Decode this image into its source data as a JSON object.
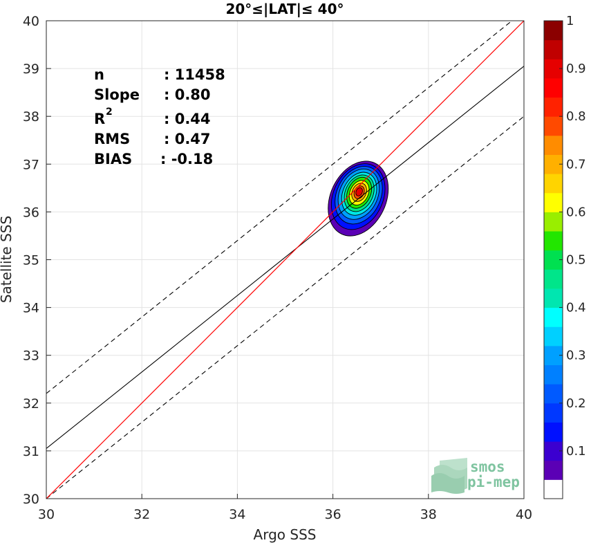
{
  "chart_data": {
    "type": "scatter",
    "title": "20°≤|LAT|≤ 40°",
    "xlabel": "Argo SSS",
    "ylabel": "Satellite SSS",
    "xlim": [
      30,
      40
    ],
    "ylim": [
      30,
      40
    ],
    "xticks": [
      "30",
      "32",
      "34",
      "36",
      "38",
      "40"
    ],
    "yticks": [
      "30",
      "31",
      "32",
      "33",
      "34",
      "35",
      "36",
      "37",
      "38",
      "39",
      "40"
    ],
    "grid": true,
    "stats": {
      "n_label": "n",
      "n_value": ": 11458",
      "slope_label": "Slope",
      "slope_value": ": 0.80",
      "r2_label": "R",
      "r2_sup": "2",
      "r2_value": ": 0.44",
      "rms_label": "RMS",
      "rms_value": ": 0.47",
      "bias_label": "BIAS",
      "bias_value": ": -0.18"
    },
    "lines": {
      "one_to_one": {
        "x": [
          30,
          40
        ],
        "y": [
          30,
          40
        ],
        "color": "#ff0000"
      },
      "regression": {
        "x": [
          30,
          40
        ],
        "y": [
          31.05,
          39.05
        ],
        "color": "#000000"
      },
      "upper_bound": {
        "x": [
          30,
          40
        ],
        "y": [
          32.2,
          40.2
        ],
        "color": "#000000",
        "style": "dashed"
      },
      "lower_bound": {
        "x": [
          30,
          40
        ],
        "y": [
          30.0,
          38.0
        ],
        "color": "#000000",
        "style": "dashed"
      }
    },
    "density": {
      "center_x": 36.55,
      "center_y": 36.4,
      "levels": [
        0.05,
        0.1,
        0.15,
        0.2,
        0.25,
        0.3,
        0.35,
        0.4,
        0.45,
        0.5,
        0.55,
        0.6,
        0.65,
        0.7,
        0.75,
        0.8,
        0.85,
        0.9,
        0.95
      ],
      "contours": [
        {
          "level": 0.05,
          "color": "#5b00b5",
          "rx": 0.58,
          "ry": 0.82,
          "dx": -0.02,
          "dy": -0.12
        },
        {
          "level": 0.2,
          "color": "#0010ff",
          "rx": 0.52,
          "ry": 0.72,
          "dx": -0.02,
          "dy": -0.08
        },
        {
          "level": 0.25,
          "color": "#005aff",
          "rx": 0.46,
          "ry": 0.63,
          "dx": -0.01,
          "dy": -0.05
        },
        {
          "level": 0.3,
          "color": "#00a0ff",
          "rx": 0.4,
          "ry": 0.55,
          "dx": -0.01,
          "dy": -0.03
        },
        {
          "level": 0.4,
          "color": "#00e6e6",
          "rx": 0.34,
          "ry": 0.47,
          "dx": 0.0,
          "dy": -0.02
        },
        {
          "level": 0.45,
          "color": "#00e58a",
          "rx": 0.29,
          "ry": 0.4,
          "dx": 0.0,
          "dy": -0.01
        },
        {
          "level": 0.5,
          "color": "#22e600",
          "rx": 0.24,
          "ry": 0.34,
          "dx": 0.0,
          "dy": 0.0
        },
        {
          "level": 0.6,
          "color": "#ffff00",
          "rx": 0.19,
          "ry": 0.27,
          "dx": 0.0,
          "dy": 0.0
        },
        {
          "level": 0.7,
          "color": "#ffb000",
          "rx": 0.145,
          "ry": 0.2,
          "dx": 0.0,
          "dy": 0.01
        },
        {
          "level": 0.8,
          "color": "#ff4a00",
          "rx": 0.1,
          "ry": 0.14,
          "dx": 0.0,
          "dy": 0.01
        },
        {
          "level": 0.9,
          "color": "#e60000",
          "rx": 0.065,
          "ry": 0.09,
          "dx": 0.0,
          "dy": 0.02
        }
      ]
    },
    "colorbar": {
      "ticks": [
        "0.1",
        "0.2",
        "0.3",
        "0.4",
        "0.5",
        "0.6",
        "0.7",
        "0.8",
        "0.9",
        "1"
      ],
      "tick_values": [
        0.1,
        0.2,
        0.3,
        0.4,
        0.5,
        0.6,
        0.7,
        0.8,
        0.9,
        1.0
      ],
      "colors": [
        "#ffffff",
        "#5b00b5",
        "#3b00d0",
        "#0010ff",
        "#0038ff",
        "#005aff",
        "#0080ff",
        "#00a0ff",
        "#00d0ff",
        "#00ffff",
        "#00e6b0",
        "#00e58a",
        "#00e050",
        "#22e600",
        "#99ee00",
        "#ffff00",
        "#ffd400",
        "#ffb000",
        "#ff8c00",
        "#ff4a00",
        "#ff2200",
        "#ff0000",
        "#e60000",
        "#c00000",
        "#8b0000"
      ]
    }
  },
  "logo": {
    "line1": "smos",
    "line2": "pi-mep"
  }
}
